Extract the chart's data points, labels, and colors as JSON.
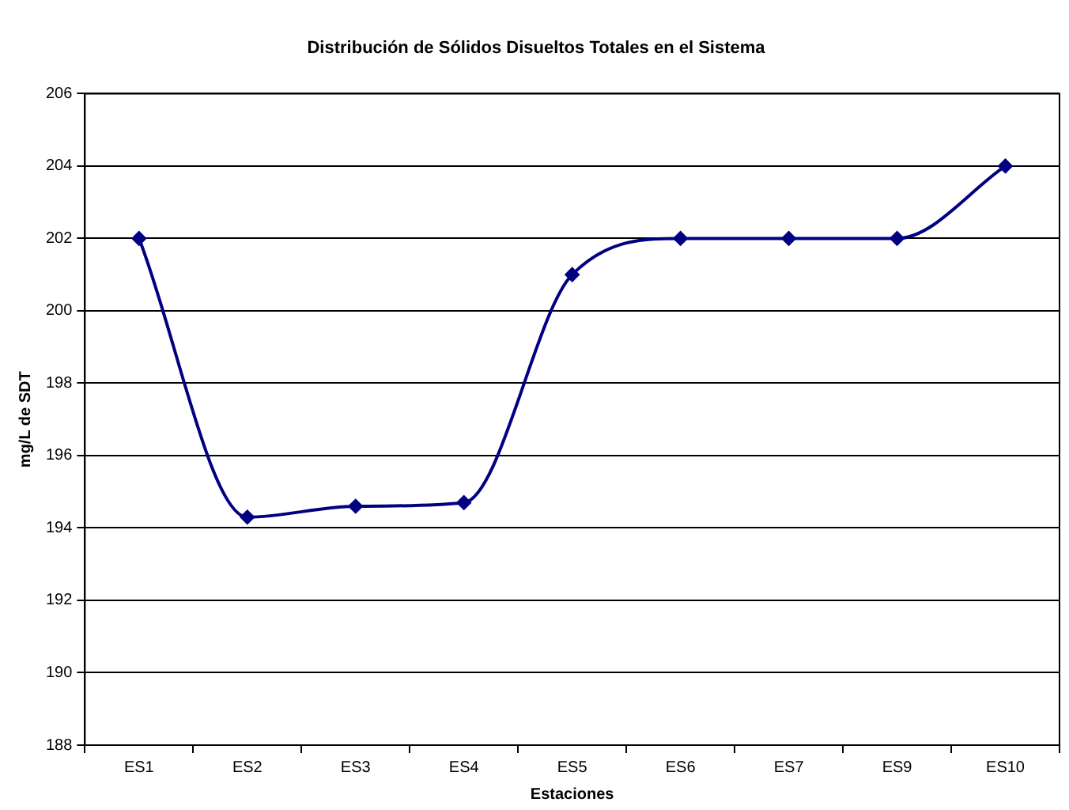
{
  "chart_data": {
    "type": "line",
    "title": "Distribución de Sólidos Disueltos Totales en el Sistema",
    "xlabel": "Estaciones",
    "ylabel": "mg/L de SDT",
    "categories": [
      "ES1",
      "ES2",
      "ES3",
      "ES4",
      "ES5",
      "ES6",
      "ES7",
      "ES9",
      "ES10"
    ],
    "series": [
      {
        "color": "#000080",
        "values": [
          202,
          194.3,
          194.6,
          194.7,
          201,
          202,
          202,
          202,
          204
        ]
      }
    ],
    "ylim": [
      188,
      206
    ],
    "yticks": [
      188,
      190,
      192,
      194,
      196,
      198,
      200,
      202,
      204,
      206
    ],
    "grid": "y",
    "legend": false,
    "marker": "diamond",
    "line_style": "solid"
  }
}
